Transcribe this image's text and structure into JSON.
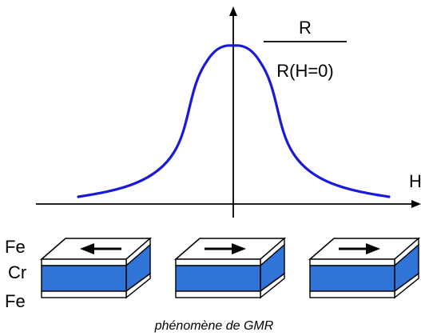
{
  "graph": {
    "fraction_numerator": "R",
    "fraction_denominator": "R(H=0)",
    "x_axis_label": "H",
    "curve_color": "#1a1ad6"
  },
  "layers": {
    "top_label": "Fe",
    "middle_label": "Cr",
    "bottom_label": "Fe",
    "cr_color": "#2f74d6",
    "fe_color": "#ffffff"
  },
  "blocks": [
    {
      "arrow": "left-arrow-icon"
    },
    {
      "arrow": "right-arrow-icon"
    },
    {
      "arrow": "right-arrow-icon"
    }
  ],
  "caption": "phénomène de GMR"
}
